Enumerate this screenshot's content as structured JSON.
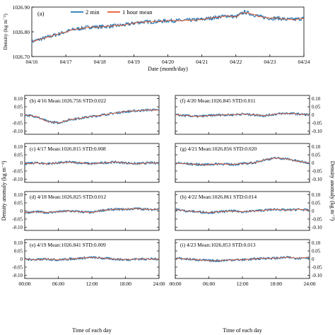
{
  "colors": {
    "two_min": "#1f77b4",
    "hour_mean": "#e4572e",
    "axis": "#000000"
  },
  "legend": {
    "two_min": "2 min",
    "hour_mean": "1 hour mean"
  },
  "chart_data": [
    {
      "type": "line",
      "panel_label": "(a)",
      "xlabel": "Date (month/day)",
      "ylabel": "Density (kg m⁻³)",
      "x_ticks": [
        "04/16",
        "04/17",
        "04/18",
        "04/19",
        "04/20",
        "04/21",
        "04/22",
        "04/23",
        "04/24"
      ],
      "y_ticks": [
        "1026.70",
        "1026.80",
        "1026.90"
      ],
      "ylim": [
        1026.7,
        1026.9
      ],
      "legend_position": "top-center",
      "series": [
        {
          "name": "2 min",
          "x": [
            "04/16 00:00",
            "04/16 06:00",
            "04/16 12:00",
            "04/16 18:00",
            "04/17 00:00",
            "04/17 06:00",
            "04/17 12:00",
            "04/17 18:00",
            "04/18 00:00",
            "04/18 06:00",
            "04/18 12:00",
            "04/18 18:00",
            "04/19 00:00",
            "04/19 06:00",
            "04/19 12:00",
            "04/19 18:00",
            "04/20 00:00",
            "04/20 06:00",
            "04/20 12:00",
            "04/20 18:00",
            "04/21 00:00",
            "04/21 06:00",
            "04/21 12:00",
            "04/21 18:00",
            "04/22 00:00",
            "04/22 06:00",
            "04/22 12:00",
            "04/22 18:00",
            "04/23 00:00",
            "04/23 06:00",
            "04/23 12:00",
            "04/23 18:00",
            "04/24 00:00"
          ],
          "y": [
            1026.76,
            1026.77,
            1026.78,
            1026.79,
            1026.8,
            1026.81,
            1026.815,
            1026.82,
            1026.82,
            1026.822,
            1026.825,
            1026.828,
            1026.835,
            1026.84,
            1026.84,
            1026.842,
            1026.845,
            1026.845,
            1026.846,
            1026.848,
            1026.85,
            1026.855,
            1026.86,
            1026.865,
            1026.86,
            1026.88,
            1026.87,
            1026.86,
            1026.855,
            1026.855,
            1026.85,
            1026.85,
            1026.855
          ]
        },
        {
          "name": "1 hour mean",
          "x": [
            "04/16 00:00",
            "04/16 06:00",
            "04/16 12:00",
            "04/16 18:00",
            "04/17 00:00",
            "04/17 06:00",
            "04/17 12:00",
            "04/17 18:00",
            "04/18 00:00",
            "04/18 06:00",
            "04/18 12:00",
            "04/18 18:00",
            "04/19 00:00",
            "04/19 06:00",
            "04/19 12:00",
            "04/19 18:00",
            "04/20 00:00",
            "04/20 06:00",
            "04/20 12:00",
            "04/20 18:00",
            "04/21 00:00",
            "04/21 06:00",
            "04/21 12:00",
            "04/21 18:00",
            "04/22 00:00",
            "04/22 06:00",
            "04/22 12:00",
            "04/22 18:00",
            "04/23 00:00",
            "04/23 06:00",
            "04/23 12:00",
            "04/23 18:00",
            "04/24 00:00"
          ],
          "y": [
            1026.76,
            1026.77,
            1026.78,
            1026.79,
            1026.8,
            1026.81,
            1026.815,
            1026.82,
            1026.82,
            1026.822,
            1026.825,
            1026.828,
            1026.835,
            1026.84,
            1026.84,
            1026.842,
            1026.845,
            1026.845,
            1026.846,
            1026.848,
            1026.85,
            1026.855,
            1026.86,
            1026.865,
            1026.86,
            1026.88,
            1026.87,
            1026.86,
            1026.855,
            1026.855,
            1026.85,
            1026.85,
            1026.855
          ]
        }
      ]
    },
    {
      "type": "line",
      "panel_label": "(b) 4/16",
      "mean_label": "Mean:1026.756",
      "std_label": "STD:0.022",
      "ylim": [
        -0.12,
        0.12
      ],
      "x": [
        "00:00",
        "02:00",
        "04:00",
        "06:00",
        "08:00",
        "10:00",
        "12:00",
        "14:00",
        "16:00",
        "18:00",
        "20:00",
        "22:00",
        "24:00"
      ],
      "series": [
        {
          "name": "2 min",
          "y": [
            0,
            -0.01,
            -0.04,
            -0.05,
            -0.03,
            -0.02,
            -0.01,
            0,
            0.01,
            0.02,
            0.025,
            0.03,
            0.03
          ]
        },
        {
          "name": "1 hour mean",
          "y": [
            0,
            -0.01,
            -0.04,
            -0.05,
            -0.03,
            -0.02,
            -0.01,
            0,
            0.01,
            0.02,
            0.025,
            0.03,
            0.03
          ]
        }
      ]
    },
    {
      "type": "line",
      "panel_label": "(c) 4/17",
      "mean_label": "Mean:1026.815",
      "std_label": "STD:0.008",
      "ylim": [
        -0.12,
        0.12
      ],
      "x": [
        "00:00",
        "02:00",
        "04:00",
        "06:00",
        "08:00",
        "10:00",
        "12:00",
        "14:00",
        "16:00",
        "18:00",
        "20:00",
        "22:00",
        "24:00"
      ],
      "series": [
        {
          "name": "2 min",
          "y": [
            -0.005,
            0,
            -0.005,
            0,
            0.005,
            0,
            -0.005,
            0,
            0.005,
            0,
            -0.005,
            0,
            0
          ]
        },
        {
          "name": "1 hour mean",
          "y": [
            -0.005,
            0,
            -0.005,
            0,
            0.005,
            0,
            -0.005,
            0,
            0.005,
            0,
            -0.005,
            0,
            0
          ]
        }
      ]
    },
    {
      "type": "line",
      "panel_label": "(d) 4/18",
      "mean_label": "Mean:1026.825",
      "std_label": "STD:0.012",
      "ylim": [
        -0.12,
        0.12
      ],
      "x": [
        "00:00",
        "02:00",
        "04:00",
        "06:00",
        "08:00",
        "10:00",
        "12:00",
        "14:00",
        "16:00",
        "18:00",
        "20:00",
        "22:00",
        "24:00"
      ],
      "series": [
        {
          "name": "2 min",
          "y": [
            -0.01,
            -0.005,
            -0.01,
            -0.005,
            0,
            -0.005,
            -0.01,
            0.005,
            0.01,
            0.01,
            0.015,
            0.01,
            0.01
          ]
        },
        {
          "name": "1 hour mean",
          "y": [
            -0.01,
            -0.005,
            -0.01,
            -0.005,
            0,
            -0.005,
            -0.01,
            0.005,
            0.01,
            0.01,
            0.015,
            0.01,
            0.01
          ]
        }
      ]
    },
    {
      "type": "line",
      "panel_label": "(e) 4/19",
      "mean_label": "Mean:1026.841",
      "std_label": "STD:0.009",
      "ylim": [
        -0.12,
        0.12
      ],
      "x": [
        "00:00",
        "02:00",
        "04:00",
        "06:00",
        "08:00",
        "10:00",
        "12:00",
        "14:00",
        "16:00",
        "18:00",
        "20:00",
        "22:00",
        "24:00"
      ],
      "series": [
        {
          "name": "2 min",
          "y": [
            0,
            -0.005,
            0,
            -0.005,
            0,
            0.005,
            0.01,
            0.005,
            0,
            -0.005,
            0,
            0,
            0
          ]
        },
        {
          "name": "1 hour mean",
          "y": [
            0,
            -0.005,
            0,
            -0.005,
            0,
            0.005,
            0.01,
            0.005,
            0,
            -0.005,
            0,
            0,
            0
          ]
        }
      ]
    },
    {
      "type": "line",
      "panel_label": "(f) 4/20",
      "mean_label": "Mean:1026.845",
      "std_label": "STD:0.011",
      "ylim": [
        -0.12,
        0.12
      ],
      "x": [
        "00:00",
        "02:00",
        "04:00",
        "06:00",
        "08:00",
        "10:00",
        "12:00",
        "14:00",
        "16:00",
        "18:00",
        "20:00",
        "22:00",
        "24:00"
      ],
      "series": [
        {
          "name": "2 min",
          "y": [
            0,
            -0.005,
            -0.01,
            -0.005,
            0,
            0,
            0.005,
            0,
            -0.005,
            0.005,
            0.01,
            0.005,
            0
          ]
        },
        {
          "name": "1 hour mean",
          "y": [
            0,
            -0.005,
            -0.01,
            -0.005,
            0,
            0,
            0.005,
            0,
            -0.005,
            0.005,
            0.01,
            0.005,
            0
          ]
        }
      ]
    },
    {
      "type": "line",
      "panel_label": "(g) 4/21",
      "mean_label": "Mean:1026.856",
      "std_label": "STD:0.020",
      "ylim": [
        -0.12,
        0.12
      ],
      "x": [
        "00:00",
        "02:00",
        "04:00",
        "06:00",
        "08:00",
        "10:00",
        "12:00",
        "14:00",
        "16:00",
        "18:00",
        "20:00",
        "22:00",
        "24:00"
      ],
      "series": [
        {
          "name": "2 min",
          "y": [
            0,
            -0.005,
            -0.01,
            -0.01,
            -0.005,
            -0.01,
            -0.005,
            0,
            0.02,
            0.03,
            0.025,
            0.01,
            0
          ]
        },
        {
          "name": "1 hour mean",
          "y": [
            0,
            -0.005,
            -0.01,
            -0.01,
            -0.005,
            -0.01,
            -0.005,
            0,
            0.02,
            0.03,
            0.025,
            0.01,
            0
          ]
        }
      ]
    },
    {
      "type": "line",
      "panel_label": "(h) 4/22",
      "mean_label": "Mean:1026.861",
      "std_label": "STD:0.014",
      "ylim": [
        -0.12,
        0.12
      ],
      "x": [
        "00:00",
        "02:00",
        "04:00",
        "06:00",
        "08:00",
        "10:00",
        "12:00",
        "14:00",
        "16:00",
        "18:00",
        "20:00",
        "22:00",
        "24:00"
      ],
      "series": [
        {
          "name": "2 min",
          "y": [
            0.01,
            0,
            -0.005,
            -0.01,
            -0.005,
            0,
            -0.005,
            0,
            0.005,
            0.01,
            0.005,
            0.01,
            0.005
          ]
        },
        {
          "name": "1 hour mean",
          "y": [
            0.01,
            0,
            -0.005,
            -0.01,
            -0.005,
            0,
            -0.005,
            0,
            0.005,
            0.01,
            0.005,
            0.01,
            0.005
          ]
        }
      ]
    },
    {
      "type": "line",
      "panel_label": "(i) 4/23",
      "mean_label": "Mean:1026.853",
      "std_label": "STD:0.013",
      "ylim": [
        -0.12,
        0.12
      ],
      "x": [
        "00:00",
        "02:00",
        "04:00",
        "06:00",
        "08:00",
        "10:00",
        "12:00",
        "14:00",
        "16:00",
        "18:00",
        "20:00",
        "22:00",
        "24:00"
      ],
      "series": [
        {
          "name": "2 min",
          "y": [
            0.005,
            0,
            -0.005,
            -0.01,
            -0.01,
            -0.005,
            -0.005,
            0,
            0.005,
            0.005,
            0.01,
            0.005,
            0.01
          ]
        },
        {
          "name": "1 hour mean",
          "y": [
            0.005,
            0,
            -0.005,
            -0.01,
            -0.01,
            -0.005,
            -0.005,
            0,
            0.005,
            0.005,
            0.01,
            0.005,
            0.01
          ]
        }
      ]
    }
  ],
  "small_panels": {
    "y_ticks": [
      "-0.10",
      "-0.05",
      "0",
      "0.05",
      "0.10"
    ],
    "x_ticks": [
      "00:00",
      "06:00",
      "12:00",
      "18:00",
      "24:00"
    ],
    "xlabel": "Time of each day",
    "ylabel": "Density anomaly (kg m⁻³)"
  }
}
